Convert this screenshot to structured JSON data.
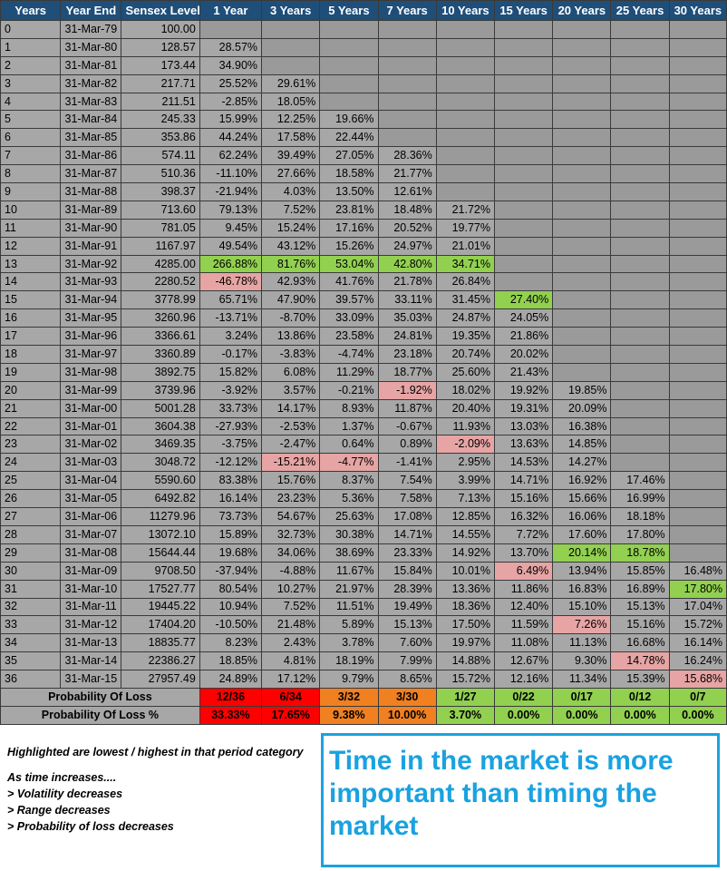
{
  "headers": [
    "Years",
    "Year End",
    "Sensex Level",
    "1 Year",
    "3 Years",
    "5 Years",
    "7 Years",
    "10 Years",
    "15 Years",
    "20 Years",
    "25 Years",
    "30 Years"
  ],
  "rows": [
    [
      "0",
      "31-Mar-79",
      "100.00",
      "",
      "",
      "",
      "",
      "",
      "",
      "",
      "",
      ""
    ],
    [
      "1",
      "31-Mar-80",
      "128.57",
      "28.57%",
      "",
      "",
      "",
      "",
      "",
      "",
      "",
      ""
    ],
    [
      "2",
      "31-Mar-81",
      "173.44",
      "34.90%",
      "",
      "",
      "",
      "",
      "",
      "",
      "",
      ""
    ],
    [
      "3",
      "31-Mar-82",
      "217.71",
      "25.52%",
      "29.61%",
      "",
      "",
      "",
      "",
      "",
      "",
      ""
    ],
    [
      "4",
      "31-Mar-83",
      "211.51",
      "-2.85%",
      "18.05%",
      "",
      "",
      "",
      "",
      "",
      "",
      ""
    ],
    [
      "5",
      "31-Mar-84",
      "245.33",
      "15.99%",
      "12.25%",
      "19.66%",
      "",
      "",
      "",
      "",
      "",
      ""
    ],
    [
      "6",
      "31-Mar-85",
      "353.86",
      "44.24%",
      "17.58%",
      "22.44%",
      "",
      "",
      "",
      "",
      "",
      ""
    ],
    [
      "7",
      "31-Mar-86",
      "574.11",
      "62.24%",
      "39.49%",
      "27.05%",
      "28.36%",
      "",
      "",
      "",
      "",
      ""
    ],
    [
      "8",
      "31-Mar-87",
      "510.36",
      "-11.10%",
      "27.66%",
      "18.58%",
      "21.77%",
      "",
      "",
      "",
      "",
      ""
    ],
    [
      "9",
      "31-Mar-88",
      "398.37",
      "-21.94%",
      "4.03%",
      "13.50%",
      "12.61%",
      "",
      "",
      "",
      "",
      ""
    ],
    [
      "10",
      "31-Mar-89",
      "713.60",
      "79.13%",
      "7.52%",
      "23.81%",
      "18.48%",
      "21.72%",
      "",
      "",
      "",
      ""
    ],
    [
      "11",
      "31-Mar-90",
      "781.05",
      "9.45%",
      "15.24%",
      "17.16%",
      "20.52%",
      "19.77%",
      "",
      "",
      "",
      ""
    ],
    [
      "12",
      "31-Mar-91",
      "1167.97",
      "49.54%",
      "43.12%",
      "15.26%",
      "24.97%",
      "21.01%",
      "",
      "",
      "",
      ""
    ],
    [
      "13",
      "31-Mar-92",
      "4285.00",
      "266.88%",
      "81.76%",
      "53.04%",
      "42.80%",
      "34.71%",
      "",
      "",
      "",
      ""
    ],
    [
      "14",
      "31-Mar-93",
      "2280.52",
      "-46.78%",
      "42.93%",
      "41.76%",
      "21.78%",
      "26.84%",
      "",
      "",
      "",
      ""
    ],
    [
      "15",
      "31-Mar-94",
      "3778.99",
      "65.71%",
      "47.90%",
      "39.57%",
      "33.11%",
      "31.45%",
      "27.40%",
      "",
      "",
      ""
    ],
    [
      "16",
      "31-Mar-95",
      "3260.96",
      "-13.71%",
      "-8.70%",
      "33.09%",
      "35.03%",
      "24.87%",
      "24.05%",
      "",
      "",
      ""
    ],
    [
      "17",
      "31-Mar-96",
      "3366.61",
      "3.24%",
      "13.86%",
      "23.58%",
      "24.81%",
      "19.35%",
      "21.86%",
      "",
      "",
      ""
    ],
    [
      "18",
      "31-Mar-97",
      "3360.89",
      "-0.17%",
      "-3.83%",
      "-4.74%",
      "23.18%",
      "20.74%",
      "20.02%",
      "",
      "",
      ""
    ],
    [
      "19",
      "31-Mar-98",
      "3892.75",
      "15.82%",
      "6.08%",
      "11.29%",
      "18.77%",
      "25.60%",
      "21.43%",
      "",
      "",
      ""
    ],
    [
      "20",
      "31-Mar-99",
      "3739.96",
      "-3.92%",
      "3.57%",
      "-0.21%",
      "-1.92%",
      "18.02%",
      "19.92%",
      "19.85%",
      "",
      ""
    ],
    [
      "21",
      "31-Mar-00",
      "5001.28",
      "33.73%",
      "14.17%",
      "8.93%",
      "11.87%",
      "20.40%",
      "19.31%",
      "20.09%",
      "",
      ""
    ],
    [
      "22",
      "31-Mar-01",
      "3604.38",
      "-27.93%",
      "-2.53%",
      "1.37%",
      "-0.67%",
      "11.93%",
      "13.03%",
      "16.38%",
      "",
      ""
    ],
    [
      "23",
      "31-Mar-02",
      "3469.35",
      "-3.75%",
      "-2.47%",
      "0.64%",
      "0.89%",
      "-2.09%",
      "13.63%",
      "14.85%",
      "",
      ""
    ],
    [
      "24",
      "31-Mar-03",
      "3048.72",
      "-12.12%",
      "-15.21%",
      "-4.77%",
      "-1.41%",
      "2.95%",
      "14.53%",
      "14.27%",
      "",
      ""
    ],
    [
      "25",
      "31-Mar-04",
      "5590.60",
      "83.38%",
      "15.76%",
      "8.37%",
      "7.54%",
      "3.99%",
      "14.71%",
      "16.92%",
      "17.46%",
      ""
    ],
    [
      "26",
      "31-Mar-05",
      "6492.82",
      "16.14%",
      "23.23%",
      "5.36%",
      "7.58%",
      "7.13%",
      "15.16%",
      "15.66%",
      "16.99%",
      ""
    ],
    [
      "27",
      "31-Mar-06",
      "11279.96",
      "73.73%",
      "54.67%",
      "25.63%",
      "17.08%",
      "12.85%",
      "16.32%",
      "16.06%",
      "18.18%",
      ""
    ],
    [
      "28",
      "31-Mar-07",
      "13072.10",
      "15.89%",
      "32.73%",
      "30.38%",
      "14.71%",
      "14.55%",
      "7.72%",
      "17.60%",
      "17.80%",
      ""
    ],
    [
      "29",
      "31-Mar-08",
      "15644.44",
      "19.68%",
      "34.06%",
      "38.69%",
      "23.33%",
      "14.92%",
      "13.70%",
      "20.14%",
      "18.78%",
      ""
    ],
    [
      "30",
      "31-Mar-09",
      "9708.50",
      "-37.94%",
      "-4.88%",
      "11.67%",
      "15.84%",
      "10.01%",
      "6.49%",
      "13.94%",
      "15.85%",
      "16.48%"
    ],
    [
      "31",
      "31-Mar-10",
      "17527.77",
      "80.54%",
      "10.27%",
      "21.97%",
      "28.39%",
      "13.36%",
      "11.86%",
      "16.83%",
      "16.89%",
      "17.80%"
    ],
    [
      "32",
      "31-Mar-11",
      "19445.22",
      "10.94%",
      "7.52%",
      "11.51%",
      "19.49%",
      "18.36%",
      "12.40%",
      "15.10%",
      "15.13%",
      "17.04%"
    ],
    [
      "33",
      "31-Mar-12",
      "17404.20",
      "-10.50%",
      "21.48%",
      "5.89%",
      "15.13%",
      "17.50%",
      "11.59%",
      "7.26%",
      "15.16%",
      "15.72%"
    ],
    [
      "34",
      "31-Mar-13",
      "18835.77",
      "8.23%",
      "2.43%",
      "3.78%",
      "7.60%",
      "19.97%",
      "11.08%",
      "11.13%",
      "16.68%",
      "16.14%"
    ],
    [
      "35",
      "31-Mar-14",
      "22386.27",
      "18.85%",
      "4.81%",
      "18.19%",
      "7.99%",
      "14.88%",
      "12.67%",
      "9.30%",
      "14.78%",
      "16.24%"
    ],
    [
      "36",
      "31-Mar-15",
      "27957.49",
      "24.89%",
      "17.12%",
      "9.79%",
      "8.65%",
      "15.72%",
      "12.16%",
      "11.34%",
      "15.39%",
      "15.68%"
    ]
  ],
  "highlights": {
    "green": [
      "13-3",
      "13-4",
      "13-5",
      "13-6",
      "13-7",
      "15-8",
      "29-9",
      "29-10",
      "31-11"
    ],
    "pink": [
      "14-3",
      "24-4",
      "24-5",
      "20-6",
      "23-7",
      "30-8",
      "33-9",
      "35-10",
      "36-11"
    ]
  },
  "probability_of_loss": {
    "label": "Probability Of Loss",
    "values": [
      "12/36",
      "6/34",
      "3/32",
      "3/30",
      "1/27",
      "0/22",
      "0/17",
      "0/12",
      "0/7"
    ]
  },
  "probability_of_loss_pct": {
    "label": "Probability Of Loss %",
    "values": [
      "33.33%",
      "17.65%",
      "9.38%",
      "10.00%",
      "3.70%",
      "0.00%",
      "0.00%",
      "0.00%",
      "0.00%"
    ]
  },
  "footer_colors": [
    "red",
    "red",
    "orange",
    "orange",
    "green",
    "green",
    "green",
    "green",
    "green"
  ],
  "colors": {
    "header_bg": "#1f4e79",
    "cell_bg": "#a7a7a7",
    "green": "#92d050",
    "pink": "#e6a4a4",
    "red": "#ff0000",
    "orange": "#f08020",
    "callout": "#1aa2e0"
  },
  "notes": {
    "highlight": "Highlighted are lowest / highest in that period category",
    "intro": "As time increases....",
    "points": [
      "> Volatility decreases",
      "> Range decreases",
      "> Probability of loss decreases"
    ]
  },
  "callout": {
    "line1": "Time in the market is more",
    "line2": "important than timing the",
    "line3": "market"
  }
}
